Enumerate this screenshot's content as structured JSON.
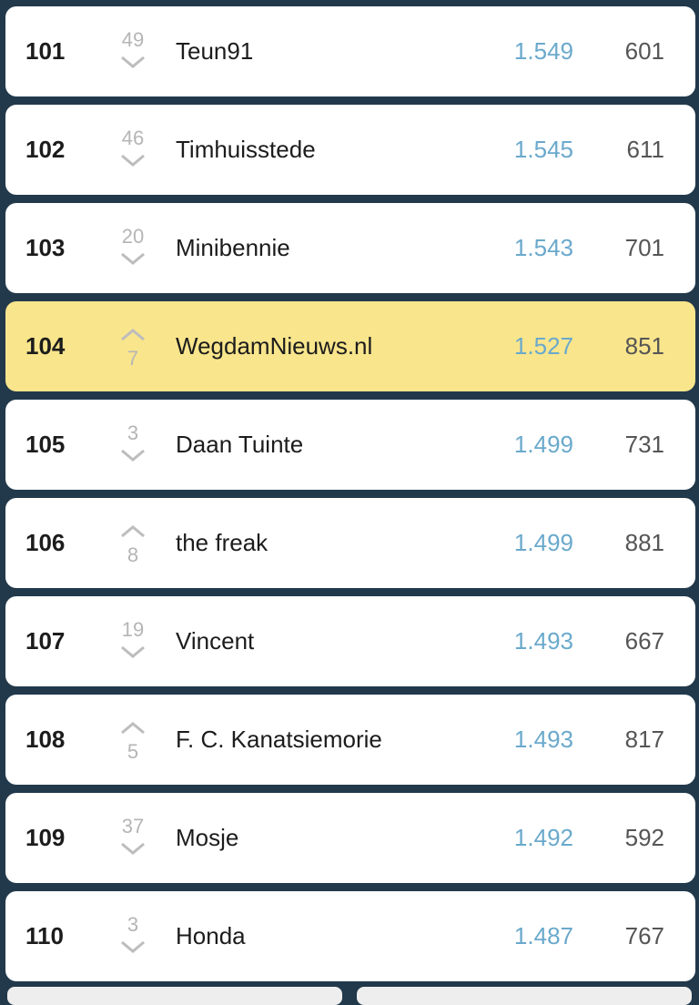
{
  "rows": [
    {
      "rank": "101",
      "move": "49",
      "dir": "down",
      "name": "Teun91",
      "score": "1.549",
      "points": "601"
    },
    {
      "rank": "102",
      "move": "46",
      "dir": "down",
      "name": "Timhuisstede",
      "score": "1.545",
      "points": "611"
    },
    {
      "rank": "103",
      "move": "20",
      "dir": "down",
      "name": "Minibennie",
      "score": "1.543",
      "points": "701"
    },
    {
      "rank": "104",
      "move": "7",
      "dir": "up",
      "name": "WegdamNieuws.nl",
      "score": "1.527",
      "points": "851",
      "highlight": true
    },
    {
      "rank": "105",
      "move": "3",
      "dir": "down",
      "name": "Daan Tuinte",
      "score": "1.499",
      "points": "731"
    },
    {
      "rank": "106",
      "move": "8",
      "dir": "up",
      "name": "the freak",
      "score": "1.499",
      "points": "881"
    },
    {
      "rank": "107",
      "move": "19",
      "dir": "down",
      "name": "Vincent",
      "score": "1.493",
      "points": "667"
    },
    {
      "rank": "108",
      "move": "5",
      "dir": "up",
      "name": "F. C. Kanatsiemorie",
      "score": "1.493",
      "points": "817"
    },
    {
      "rank": "109",
      "move": "37",
      "dir": "down",
      "name": "Mosje",
      "score": "1.492",
      "points": "592"
    },
    {
      "rank": "110",
      "move": "3",
      "dir": "down",
      "name": "Honda",
      "score": "1.487",
      "points": "767"
    }
  ],
  "colors": {
    "background": "#22394b",
    "highlight": "#f9e58c",
    "score": "#6aa9cc"
  }
}
